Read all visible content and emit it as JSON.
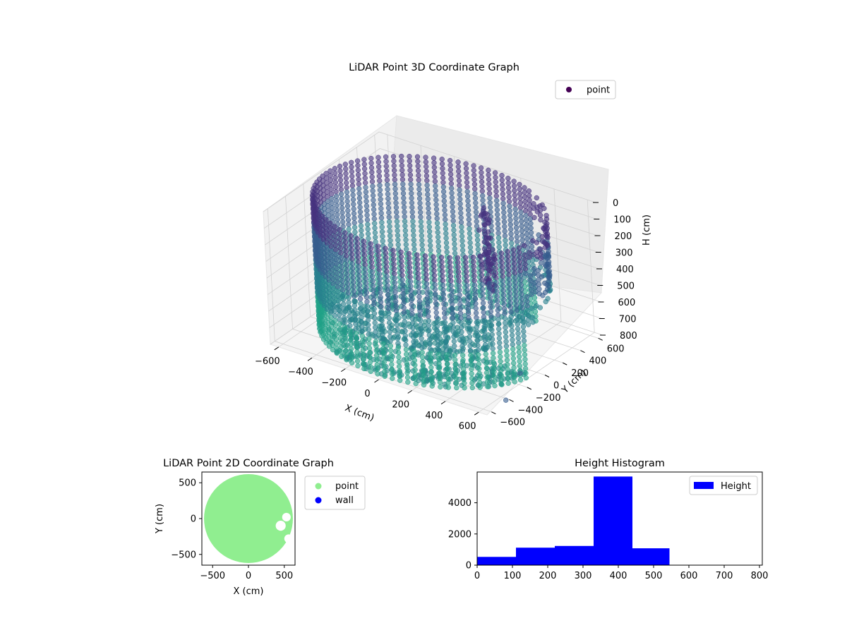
{
  "chart_data": [
    {
      "type": "scatter",
      "projection": "3d",
      "title": "LiDAR Point 3D Coordinate Graph",
      "xlabel": "X (cm)",
      "ylabel": "Y (cm)",
      "zlabel": "H (cm)",
      "xlim": [
        -650,
        650
      ],
      "ylim": [
        -650,
        650
      ],
      "zlim": [
        800,
        0
      ],
      "x_ticks": [
        -600,
        -400,
        -200,
        0,
        200,
        400,
        600
      ],
      "y_ticks": [
        -600,
        -400,
        -200,
        0,
        200,
        400,
        600
      ],
      "z_ticks": [
        0,
        100,
        200,
        300,
        400,
        500,
        600,
        700,
        800
      ],
      "z_inverted": true,
      "colormap": "viridis",
      "grid": true,
      "legend": {
        "placement": "upper-right",
        "entries": [
          {
            "label": "point",
            "color": "#440154"
          }
        ]
      },
      "structure": {
        "wall_radius_cm": 620,
        "wall_height_range_cm": [
          0,
          800
        ],
        "opening_angles_deg": [
          -10,
          60
        ],
        "isolated_points": [
          {
            "x": 640,
            "y": -250,
            "h": 700
          },
          {
            "x": 640,
            "y": -420,
            "h": 800
          }
        ]
      }
    },
    {
      "type": "scatter",
      "title": "LiDAR Point 2D Coordinate Graph",
      "xlabel": "X (cm)",
      "ylabel": "Y (cm)",
      "xlim": [
        -650,
        650
      ],
      "ylim": [
        -650,
        650
      ],
      "x_ticks": [
        -500,
        0,
        500
      ],
      "y_ticks": [
        -500,
        0,
        500
      ],
      "legend": {
        "placement": "outside-right",
        "entries": [
          {
            "label": "point",
            "color": "#90ee90"
          },
          {
            "label": "wall",
            "color": "#0000ff"
          }
        ]
      },
      "filled_region": {
        "series": "point",
        "center": [
          0,
          0
        ],
        "radius_cm": 620,
        "holes": [
          {
            "x": 450,
            "y": -100,
            "r": 70
          },
          {
            "x": 530,
            "y": 20,
            "r": 60
          },
          {
            "x": 560,
            "y": -280,
            "r": 60
          }
        ]
      }
    },
    {
      "type": "bar",
      "title": "Height Histogram",
      "xlabel": "",
      "ylabel": "",
      "bins": [
        {
          "start": 0,
          "end": 110,
          "value": 530
        },
        {
          "start": 110,
          "end": 220,
          "value": 1120
        },
        {
          "start": 220,
          "end": 330,
          "value": 1230
        },
        {
          "start": 330,
          "end": 440,
          "value": 5680
        },
        {
          "start": 440,
          "end": 545,
          "value": 1080
        },
        {
          "start": 545,
          "end": 800,
          "value": 0
        }
      ],
      "xlim": [
        0,
        808
      ],
      "ylim": [
        0,
        5970
      ],
      "x_ticks": [
        0,
        100,
        200,
        300,
        400,
        500,
        600,
        700,
        800
      ],
      "y_ticks": [
        0,
        2000,
        4000
      ],
      "color": "#0000ff",
      "legend": {
        "placement": "upper-right",
        "entries": [
          {
            "label": "Height",
            "color": "#0000ff"
          }
        ]
      }
    }
  ]
}
